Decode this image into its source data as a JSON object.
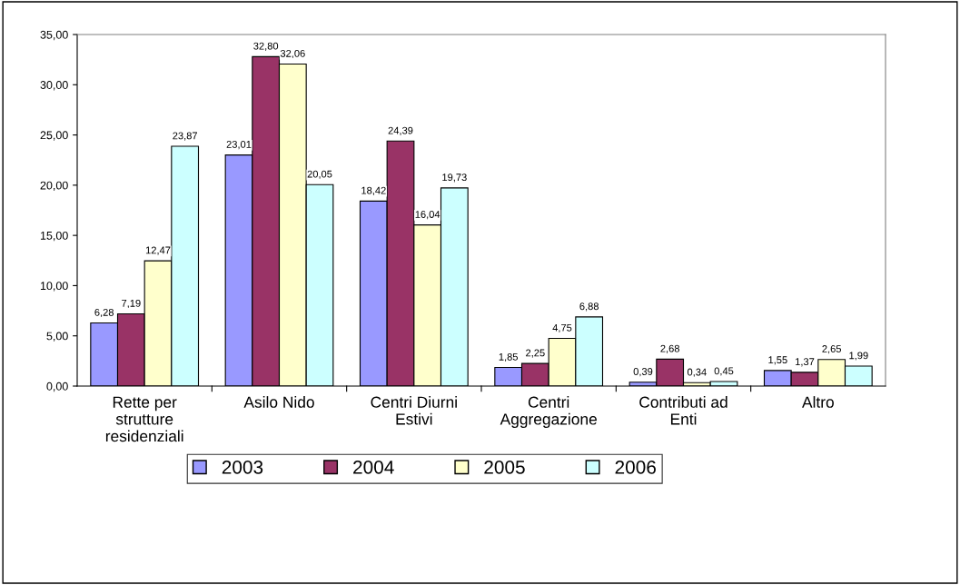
{
  "chart_data": {
    "type": "bar",
    "categories": [
      "Rette per\nstrutture\nresidenziali",
      "Asilo Nido",
      "Centri Diurni\nEstivi",
      "Centri\nAggregazione",
      "Contributi ad\nEnti",
      "Altro"
    ],
    "series": [
      {
        "name": "2003",
        "color": "#9999ff",
        "values": [
          6.28,
          23.01,
          18.42,
          1.85,
          0.39,
          1.55
        ],
        "value_labels": [
          "6,28",
          "23,01",
          "18,42",
          "1,85",
          "0,39",
          "1,55"
        ]
      },
      {
        "name": "2004",
        "color": "#993366",
        "values": [
          7.19,
          32.8,
          24.39,
          2.25,
          2.68,
          1.37
        ],
        "value_labels": [
          "7,19",
          "32,80",
          "24,39",
          "2,25",
          "2,68",
          "1,37"
        ]
      },
      {
        "name": "2005",
        "color": "#ffffcc",
        "values": [
          12.47,
          32.06,
          16.04,
          4.75,
          0.34,
          2.65
        ],
        "value_labels": [
          "12,47",
          "32,06",
          "16,04",
          "4,75",
          "0,34",
          "2,65"
        ]
      },
      {
        "name": "2006",
        "color": "#ccffff",
        "values": [
          23.87,
          20.05,
          19.73,
          6.88,
          0.45,
          1.99
        ],
        "value_labels": [
          "23,87",
          "20,05",
          "19,73",
          "6,88",
          "0,45",
          "1,99"
        ]
      }
    ],
    "ylim": [
      0,
      35
    ],
    "yticks": [
      {
        "value": 0,
        "label": "0,00"
      },
      {
        "value": 5,
        "label": "5,00"
      },
      {
        "value": 10,
        "label": "10,00"
      },
      {
        "value": 15,
        "label": "15,00"
      },
      {
        "value": 20,
        "label": "20,00"
      },
      {
        "value": 25,
        "label": "25,00"
      },
      {
        "value": 30,
        "label": "30,00"
      },
      {
        "value": 35,
        "label": "35,00"
      }
    ],
    "legend": "bottom",
    "grid": false
  }
}
